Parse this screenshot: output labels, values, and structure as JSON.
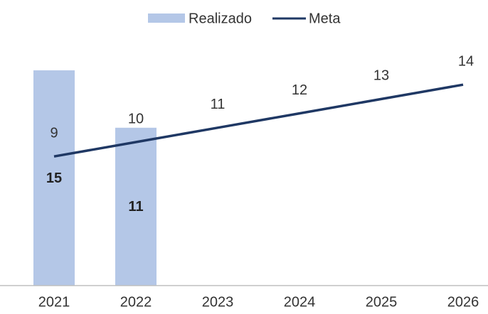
{
  "chart_data": {
    "type": "bar",
    "categories": [
      "2021",
      "2022",
      "2023",
      "2024",
      "2025",
      "2026"
    ],
    "series": [
      {
        "name": "Realizado",
        "type": "bar",
        "color": "#b4c7e7",
        "values": [
          15,
          11,
          null,
          null,
          null,
          null
        ]
      },
      {
        "name": "Meta",
        "type": "line",
        "color": "#1f3864",
        "values": [
          9,
          10,
          11,
          12,
          13,
          14
        ]
      }
    ],
    "ylim": [
      0,
      16
    ],
    "legend": "top"
  }
}
